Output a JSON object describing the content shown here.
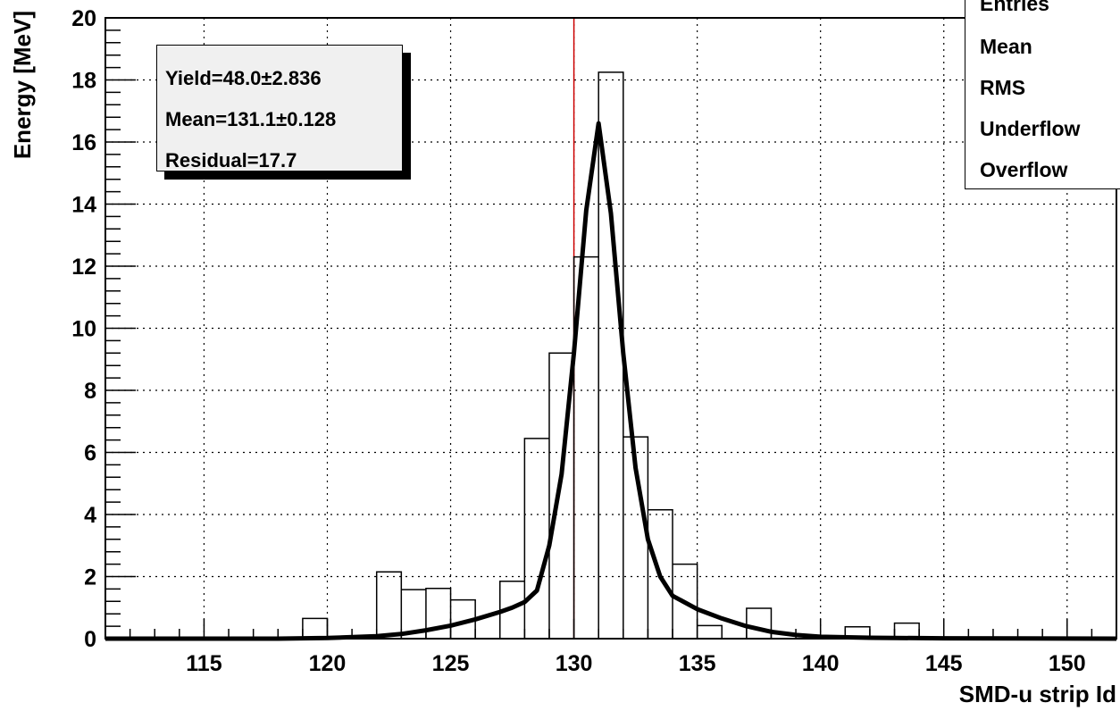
{
  "chart_data": {
    "type": "histogram",
    "xlabel": "SMD-u strip Id",
    "ylabel": "Energy [MeV]",
    "xlim": [
      111,
      152
    ],
    "ylim": [
      0,
      20
    ],
    "x_ticks": [
      "115",
      "120",
      "125",
      "130",
      "135",
      "140",
      "145",
      "150"
    ],
    "y_ticks": [
      "0",
      "2",
      "4",
      "6",
      "8",
      "10",
      "12",
      "14",
      "16",
      "18",
      "20"
    ],
    "grid": true,
    "histogram_bins": [
      {
        "x0": 119,
        "x1": 120,
        "value": 0.65
      },
      {
        "x0": 122,
        "x1": 123,
        "value": 2.15
      },
      {
        "x0": 123,
        "x1": 124,
        "value": 1.58
      },
      {
        "x0": 124,
        "x1": 125,
        "value": 1.62
      },
      {
        "x0": 125,
        "x1": 126,
        "value": 1.25
      },
      {
        "x0": 127,
        "x1": 128,
        "value": 1.85
      },
      {
        "x0": 128,
        "x1": 129,
        "value": 6.45
      },
      {
        "x0": 129,
        "x1": 130,
        "value": 9.2
      },
      {
        "x0": 130,
        "x1": 131,
        "value": 12.3
      },
      {
        "x0": 131,
        "x1": 132,
        "value": 18.25
      },
      {
        "x0": 132,
        "x1": 133,
        "value": 6.5
      },
      {
        "x0": 133,
        "x1": 134,
        "value": 4.15
      },
      {
        "x0": 134,
        "x1": 135,
        "value": 2.4
      },
      {
        "x0": 135,
        "x1": 136,
        "value": 0.42
      },
      {
        "x0": 137,
        "x1": 138,
        "value": 0.98
      },
      {
        "x0": 141,
        "x1": 142,
        "value": 0.38
      },
      {
        "x0": 143,
        "x1": 144,
        "value": 0.5
      }
    ],
    "fit_curve": {
      "x": [
        111,
        115,
        118,
        120,
        122,
        123,
        124,
        125,
        126,
        127,
        127.5,
        128,
        128.5,
        129,
        129.5,
        130,
        130.5,
        131,
        131.5,
        132,
        132.5,
        133,
        133.5,
        134,
        135,
        136,
        137,
        138,
        139,
        140,
        142,
        145,
        152
      ],
      "y": [
        0.0,
        0.0,
        0.0,
        0.02,
        0.08,
        0.15,
        0.27,
        0.42,
        0.62,
        0.86,
        1.0,
        1.18,
        1.55,
        3.0,
        5.3,
        9.2,
        13.8,
        16.6,
        13.7,
        9.2,
        5.5,
        3.2,
        2.0,
        1.38,
        0.95,
        0.65,
        0.4,
        0.22,
        0.12,
        0.06,
        0.03,
        0.01,
        0.0
      ]
    },
    "reference_line_x": 130,
    "colors": {
      "histogram": "#000000",
      "fit": "#000000",
      "reference_line": "#cc0000",
      "grid": "#000000"
    }
  },
  "fit_box": {
    "yield": "Yield=48.0±2.836",
    "mean": "Mean=131.1±0.128",
    "residual": "Residual=17.7"
  },
  "stats_box": {
    "entries": "Entries",
    "mean": "Mean",
    "rms": "RMS",
    "underflow": "Underflow",
    "overflow": "Overflow"
  }
}
